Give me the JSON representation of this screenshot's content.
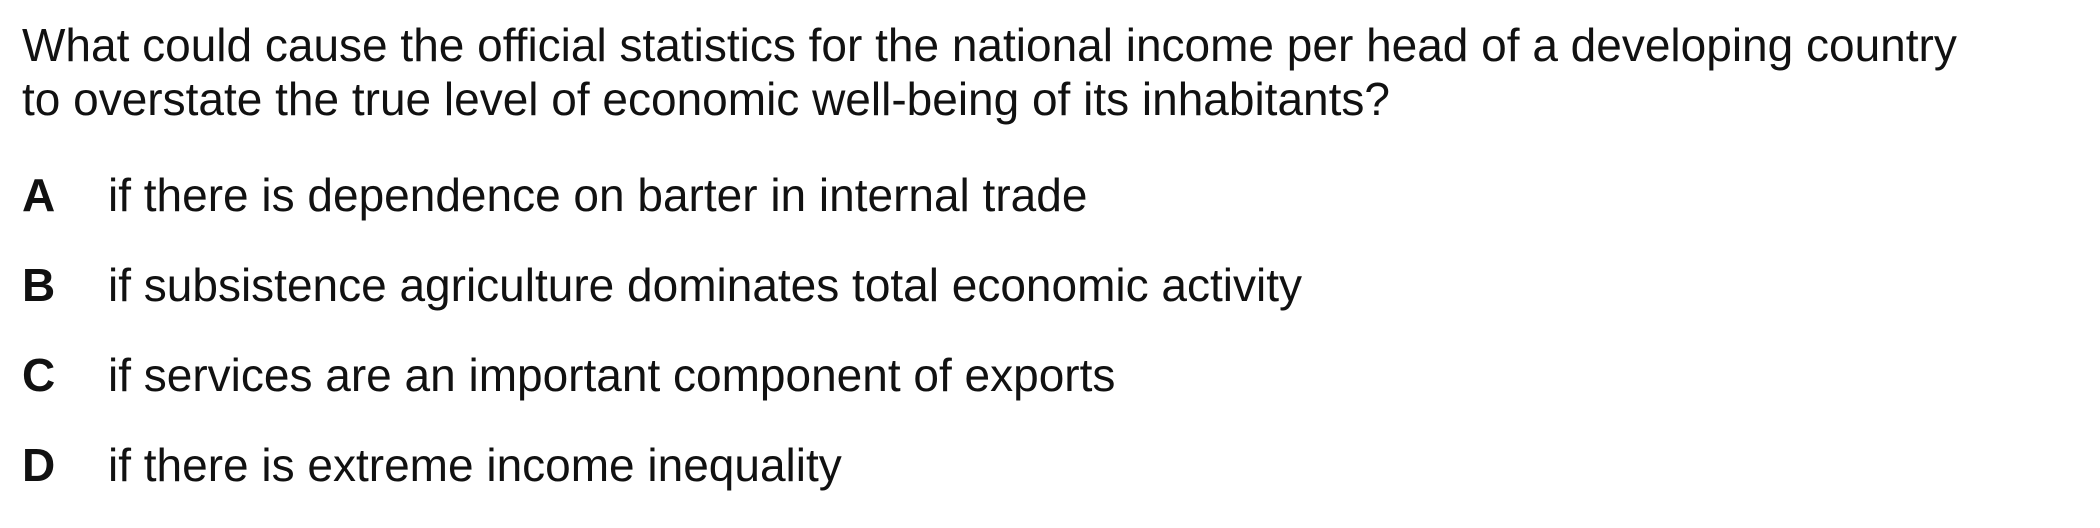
{
  "question": {
    "line1": "What could cause the official statistics for the national income per head of a developing country",
    "line2": "to overstate the true level of economic well-being of its inhabitants?"
  },
  "options": [
    {
      "letter": "A",
      "text": "if there is dependence on barter in internal trade"
    },
    {
      "letter": "B",
      "text": "if subsistence agriculture dominates total economic activity"
    },
    {
      "letter": "C",
      "text": "if services are an important component of exports"
    },
    {
      "letter": "D",
      "text": "if there is extreme income inequality"
    }
  ]
}
